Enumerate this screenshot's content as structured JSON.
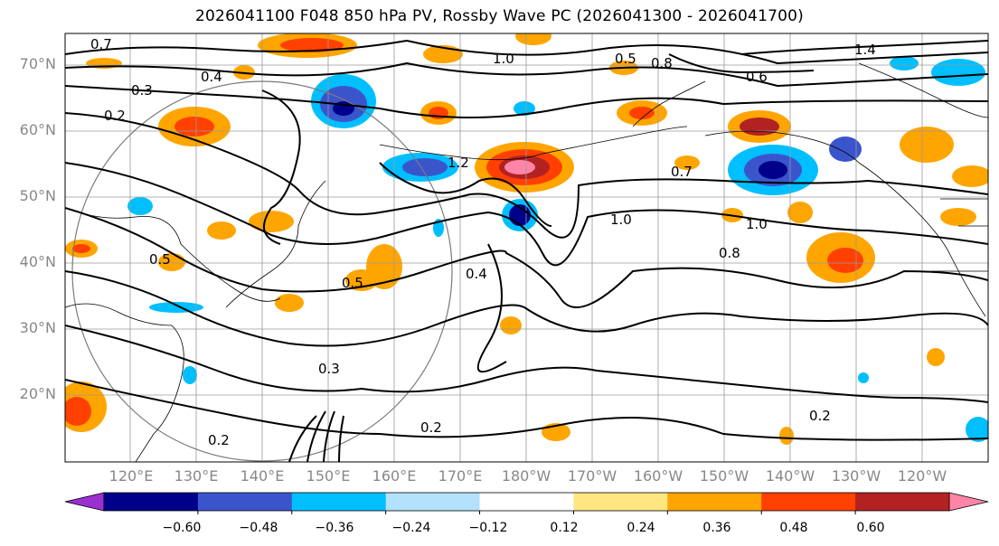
{
  "title": "2026041100 F048 850 hPa PV, Rossby Wave PC (2026041300 - 2026041700)",
  "latitude_labels": [
    "70°N",
    "60°N",
    "50°N",
    "40°N",
    "30°N",
    "20°N"
  ],
  "longitude_labels": [
    "120°E",
    "130°E",
    "140°E",
    "150°E",
    "160°E",
    "170°E",
    "180°W",
    "170°W",
    "160°W",
    "150°W",
    "140°W",
    "130°W",
    "120°W"
  ],
  "colorbar": {
    "ticks": [
      "−0.60",
      "−0.48",
      "−0.36",
      "−0.24",
      "−0.12",
      "0.12",
      "0.24",
      "0.36",
      "0.48",
      "0.60"
    ],
    "colors": [
      "#9b30d0",
      "#00008b",
      "#3a55cc",
      "#00bfff",
      "#b3e2ff",
      "#ffffff",
      "#ffe680",
      "#ffa500",
      "#ff4000",
      "#b22222",
      "#ff85a8"
    ]
  },
  "contour_labels": [
    "0.7",
    "0.3",
    "0.2",
    "0.4",
    "1.0",
    "0.5",
    "0.8",
    "0.6",
    "1.4",
    "1.2",
    "0.7",
    "1.0",
    "1.0",
    "0.8",
    "0.4",
    "0.5",
    "0.2",
    "0.3",
    "0.2",
    "0.2",
    "0.5"
  ]
}
